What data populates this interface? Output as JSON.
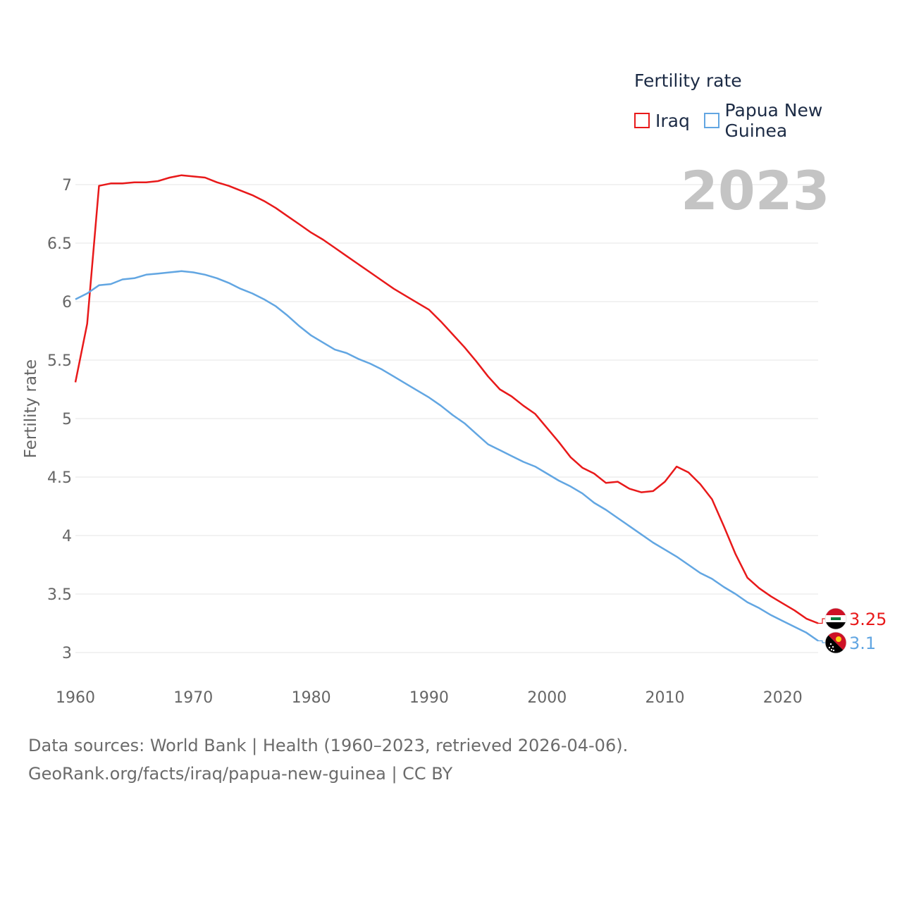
{
  "legend": {
    "title": "Fertility rate",
    "items": [
      {
        "label": "Iraq",
        "color": "#e8191a"
      },
      {
        "label": "Papua New Guinea",
        "color": "#62a6e2"
      }
    ]
  },
  "year_label": "2023",
  "footer": {
    "line1": "Data sources: World Bank | Health (1960–2023, retrieved 2026-04-06).",
    "line2": "GeoRank.org/facts/iraq/papua-new-guinea | CC BY"
  },
  "chart_data": {
    "type": "line",
    "title": "Fertility rate",
    "xlabel": "",
    "ylabel": "Fertility rate",
    "xlim": [
      1960,
      2023
    ],
    "ylim": [
      3,
      7
    ],
    "x_ticks": [
      1960,
      1970,
      1980,
      1990,
      2000,
      2010,
      2020
    ],
    "y_ticks": [
      3,
      3.5,
      4,
      4.5,
      5,
      5.5,
      6,
      6.5,
      7
    ],
    "y_tick_labels": [
      "3",
      "3.5",
      "4",
      "4.5",
      "5",
      "5.5",
      "6",
      "6.5",
      "7"
    ],
    "grid": true,
    "series": [
      {
        "name": "Iraq",
        "color": "#e8191a",
        "end_label": "3.25",
        "flag": "iraq-flag-icon",
        "x": [
          1960,
          1961,
          1962,
          1963,
          1964,
          1965,
          1966,
          1967,
          1968,
          1969,
          1970,
          1971,
          1972,
          1973,
          1974,
          1975,
          1976,
          1977,
          1978,
          1979,
          1980,
          1981,
          1982,
          1983,
          1984,
          1985,
          1986,
          1987,
          1988,
          1989,
          1990,
          1991,
          1992,
          1993,
          1994,
          1995,
          1996,
          1997,
          1998,
          1999,
          2000,
          2001,
          2002,
          2003,
          2004,
          2005,
          2006,
          2007,
          2008,
          2009,
          2010,
          2011,
          2012,
          2013,
          2014,
          2015,
          2016,
          2017,
          2018,
          2019,
          2020,
          2021,
          2022,
          2023
        ],
        "values": [
          5.31,
          5.81,
          6.99,
          7.01,
          7.01,
          7.02,
          7.02,
          7.03,
          7.06,
          7.08,
          7.07,
          7.06,
          7.02,
          6.99,
          6.95,
          6.91,
          6.86,
          6.8,
          6.73,
          6.66,
          6.59,
          6.53,
          6.46,
          6.39,
          6.32,
          6.25,
          6.18,
          6.11,
          6.05,
          5.99,
          5.93,
          5.83,
          5.72,
          5.61,
          5.49,
          5.36,
          5.25,
          5.19,
          5.11,
          5.04,
          4.92,
          4.8,
          4.67,
          4.58,
          4.53,
          4.45,
          4.46,
          4.4,
          4.37,
          4.38,
          4.46,
          4.59,
          4.54,
          4.44,
          4.31,
          4.08,
          3.84,
          3.64,
          3.55,
          3.48,
          3.42,
          3.36,
          3.29,
          3.25
        ]
      },
      {
        "name": "Papua New Guinea",
        "color": "#62a6e2",
        "end_label": "3.1",
        "flag": "papua-new-guinea-flag-icon",
        "x": [
          1960,
          1961,
          1962,
          1963,
          1964,
          1965,
          1966,
          1967,
          1968,
          1969,
          1970,
          1971,
          1972,
          1973,
          1974,
          1975,
          1976,
          1977,
          1978,
          1979,
          1980,
          1981,
          1982,
          1983,
          1984,
          1985,
          1986,
          1987,
          1988,
          1989,
          1990,
          1991,
          1992,
          1993,
          1994,
          1995,
          1996,
          1997,
          1998,
          1999,
          2000,
          2001,
          2002,
          2003,
          2004,
          2005,
          2006,
          2007,
          2008,
          2009,
          2010,
          2011,
          2012,
          2013,
          2014,
          2015,
          2016,
          2017,
          2018,
          2019,
          2020,
          2021,
          2022,
          2023
        ],
        "values": [
          6.02,
          6.07,
          6.14,
          6.15,
          6.19,
          6.2,
          6.23,
          6.24,
          6.25,
          6.26,
          6.25,
          6.23,
          6.2,
          6.16,
          6.11,
          6.07,
          6.02,
          5.96,
          5.88,
          5.79,
          5.71,
          5.65,
          5.59,
          5.56,
          5.51,
          5.47,
          5.42,
          5.36,
          5.3,
          5.24,
          5.18,
          5.11,
          5.03,
          4.96,
          4.87,
          4.78,
          4.73,
          4.68,
          4.63,
          4.59,
          4.53,
          4.47,
          4.42,
          4.36,
          4.28,
          4.22,
          4.15,
          4.08,
          4.01,
          3.94,
          3.88,
          3.82,
          3.75,
          3.68,
          3.63,
          3.56,
          3.5,
          3.43,
          3.38,
          3.32,
          3.27,
          3.22,
          3.17,
          3.1
        ]
      }
    ]
  }
}
